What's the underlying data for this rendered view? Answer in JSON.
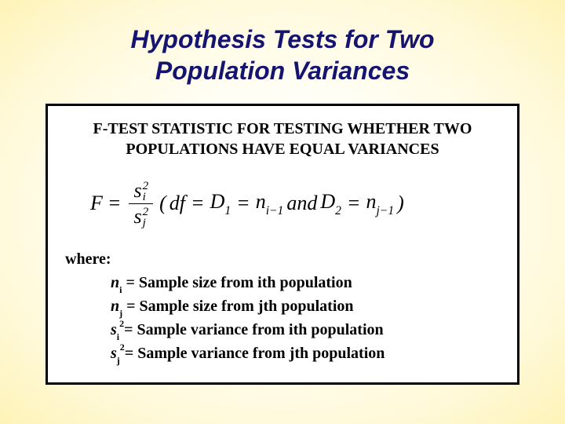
{
  "slide": {
    "title_line1": "Hypothesis Tests for Two",
    "title_line2": "Population Variances",
    "title_color": "#151570",
    "title_fontsize": 32,
    "background_gradient": [
      "#ffffff",
      "#fffef5",
      "#fff9d8",
      "#fdf3b8"
    ]
  },
  "box": {
    "heading_line1": "F-TEST STATISTIC FOR TESTING WHETHER TWO",
    "heading_line2": "POPULATIONS HAVE EQUAL VARIANCES",
    "heading_fontsize": 20,
    "border_color": "#000000",
    "background_color": "#ffffff"
  },
  "formula": {
    "lhs": "F",
    "eq": "=",
    "num_base": "s",
    "num_sub": "i",
    "num_sup": "2",
    "den_base": "s",
    "den_sub": "j",
    "den_sup": "2",
    "open": "(",
    "df": "df",
    "eq2": "=",
    "D1": "D",
    "D1_sub": "1",
    "eq3": "=",
    "n1": "n",
    "n1_sub": "i−1",
    "and": " and ",
    "D2": "D",
    "D2_sub": "2",
    "eq4": "=",
    "n2": "n",
    "n2_sub": "j−1",
    "close": ")",
    "fontsize": 26
  },
  "where": {
    "label": "where:",
    "fontsize": 20,
    "defs": [
      {
        "var": "n",
        "sub": "i",
        "sup": "",
        "text": " = Sample size from ith population"
      },
      {
        "var": "n",
        "sub": "j",
        "sup": "",
        "text": " = Sample size from jth population"
      },
      {
        "var": "s",
        "sub": "i",
        "sup": "2",
        "text": "= Sample variance from ith population"
      },
      {
        "var": "s",
        "sub": "j",
        "sup": "2",
        "text": "= Sample variance from jth population"
      }
    ]
  }
}
